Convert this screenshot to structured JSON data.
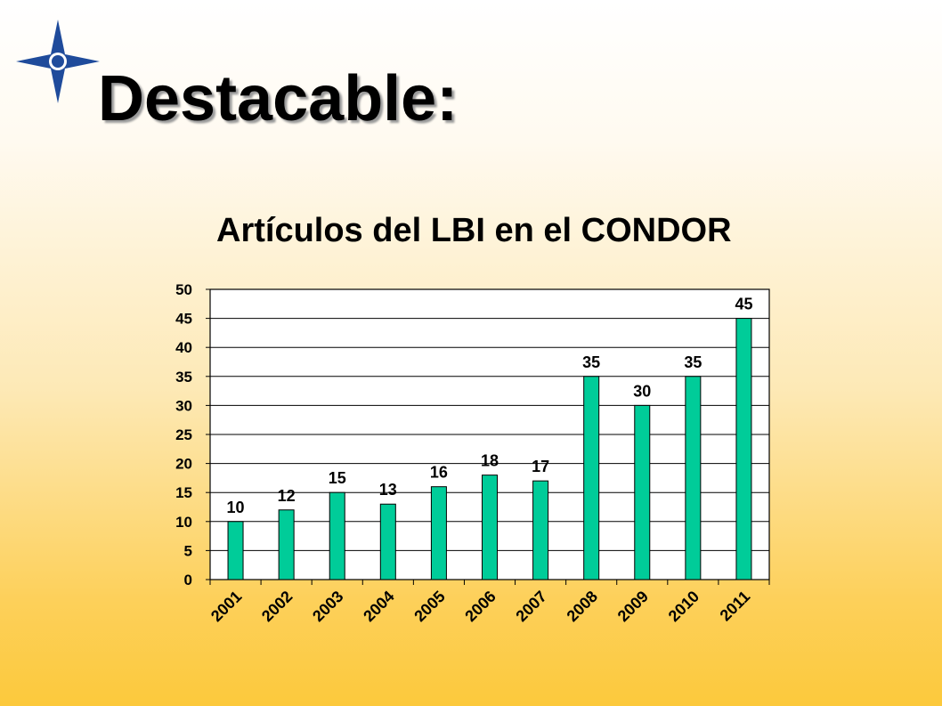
{
  "slide": {
    "title": "Destacable:"
  },
  "logo": {
    "icon": "compass-star-icon",
    "color": "#1f4b9b"
  },
  "chart_data": {
    "type": "bar",
    "title": "Artículos del LBI en el CONDOR",
    "categories": [
      "2001",
      "2002",
      "2003",
      "2004",
      "2005",
      "2006",
      "2007",
      "2008",
      "2009",
      "2010",
      "2011"
    ],
    "values": [
      10,
      12,
      15,
      13,
      16,
      18,
      17,
      35,
      30,
      35,
      45
    ],
    "ylim": [
      0,
      50
    ],
    "yticks": [
      0,
      5,
      10,
      15,
      20,
      25,
      30,
      35,
      40,
      45,
      50
    ],
    "data_labels": true,
    "grid": true,
    "legend": false,
    "bar_color": "#00cc99"
  }
}
